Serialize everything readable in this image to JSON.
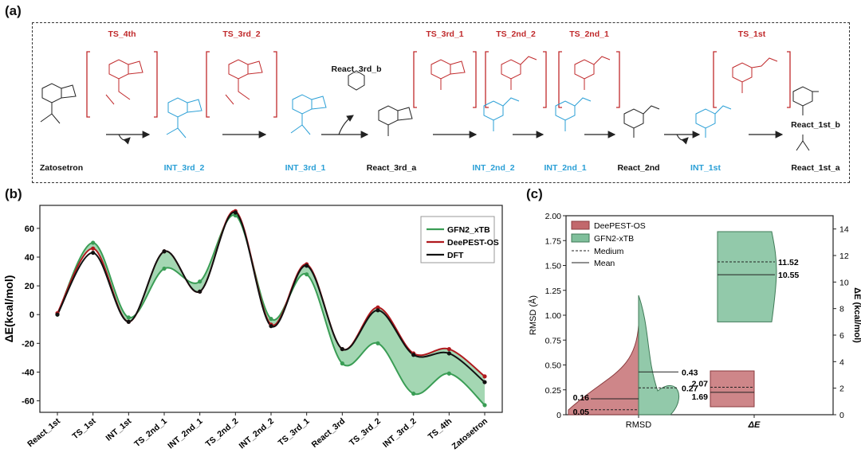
{
  "panels": {
    "a": "(a)",
    "b": "(b)",
    "c": "(c)"
  },
  "scheme": {
    "ts_labels": [
      "TS_4th",
      "TS_3rd_2",
      "TS_3rd_1",
      "TS_2nd_2",
      "TS_2nd_1",
      "TS_1st"
    ],
    "species": [
      {
        "label": "Zatosetron",
        "color": "black"
      },
      {
        "label": "INT_3rd_2",
        "color": "blue"
      },
      {
        "label": "INT_3rd_1",
        "color": "blue"
      },
      {
        "label": "React_3rd_b",
        "color": "black"
      },
      {
        "label": "React_3rd_a",
        "color": "black"
      },
      {
        "label": "INT_2nd_2",
        "color": "blue"
      },
      {
        "label": "INT_2nd_1",
        "color": "blue"
      },
      {
        "label": "React_2nd",
        "color": "black"
      },
      {
        "label": "INT_1st",
        "color": "blue"
      },
      {
        "label": "React_1st_b",
        "color": "black"
      },
      {
        "label": "React_1st_a",
        "color": "black"
      }
    ],
    "colors": {
      "ts": "#c0292b",
      "intermediate": "#2a9fd6",
      "reactant": "#111111"
    }
  },
  "chart_data": [
    {
      "type": "line",
      "ylabel": "ΔE(kcal/mol)",
      "ylim": [
        -68,
        76
      ],
      "yticks": [
        -60,
        -40,
        -20,
        0,
        20,
        40,
        60
      ],
      "categories": [
        "React_1st",
        "TS_1st",
        "INT_1st",
        "TS_2nd_1",
        "INT_2nd_1",
        "TS_2nd_2",
        "INT_2nd_2",
        "TS_3rd_1",
        "React_3rd",
        "TS_3rd_2",
        "INT_3rd_2",
        "TS_4th",
        "Zatosetron"
      ],
      "series": [
        {
          "name": "GFN2_xTB",
          "color": "#3a9d55",
          "values": [
            0,
            50,
            -2,
            32,
            23,
            69,
            -3,
            28,
            -34,
            -20,
            -55,
            -41,
            -63
          ]
        },
        {
          "name": "DeePEST-OS",
          "color": "#b0191e",
          "values": [
            1,
            46,
            -5,
            44,
            16,
            72,
            -7,
            35,
            -24,
            5,
            -27,
            -24,
            -43
          ]
        },
        {
          "name": "DFT",
          "color": "#111111",
          "values": [
            0,
            43,
            -5,
            44,
            16,
            71,
            -8,
            34,
            -24,
            3,
            -28,
            -27,
            -47
          ]
        }
      ]
    },
    {
      "type": "violin",
      "ylabel_left": "RMSD (Å)",
      "ylabel_right": "ΔE (kcal/mol)",
      "ylim_left": [
        0,
        2.0
      ],
      "ylim_right": [
        0,
        15
      ],
      "yticks_left": [
        "0",
        "0.25",
        "0.50",
        "0.75",
        "1.00",
        "1.25",
        "1.50",
        "1.75",
        "2.00"
      ],
      "yticks_right": [
        "0",
        "2",
        "4",
        "6",
        "8",
        "10",
        "12",
        "14"
      ],
      "categories": [
        "RMSD",
        "ΔE"
      ],
      "legend": [
        "DeePEST-OS",
        "GFN2-xTB",
        "Medium",
        "Mean"
      ],
      "series": [
        {
          "name": "DeePEST-OS",
          "color": "#c2686c",
          "RMSD": {
            "mean": 0.16,
            "median": 0.05,
            "max": 0.9
          },
          "dE": {
            "mean": 1.69,
            "median": 2.07,
            "min": 0.6,
            "max": 3.3
          }
        },
        {
          "name": "GFN2-xTB",
          "color": "#7fbf9b",
          "RMSD": {
            "mean": 0.43,
            "median": 0.27,
            "max": 1.2
          },
          "dE": {
            "mean": 10.55,
            "median": 11.52,
            "min": 7.0,
            "max": 13.8
          }
        }
      ],
      "annotations": {
        "rmsd_deepest": [
          "0.16",
          "0.05"
        ],
        "rmsd_gfn2": [
          "0.43",
          "0.27"
        ],
        "de_deepest": [
          "2.07",
          "1.69"
        ],
        "de_gfn2": [
          "11.52",
          "10.55"
        ]
      }
    }
  ]
}
